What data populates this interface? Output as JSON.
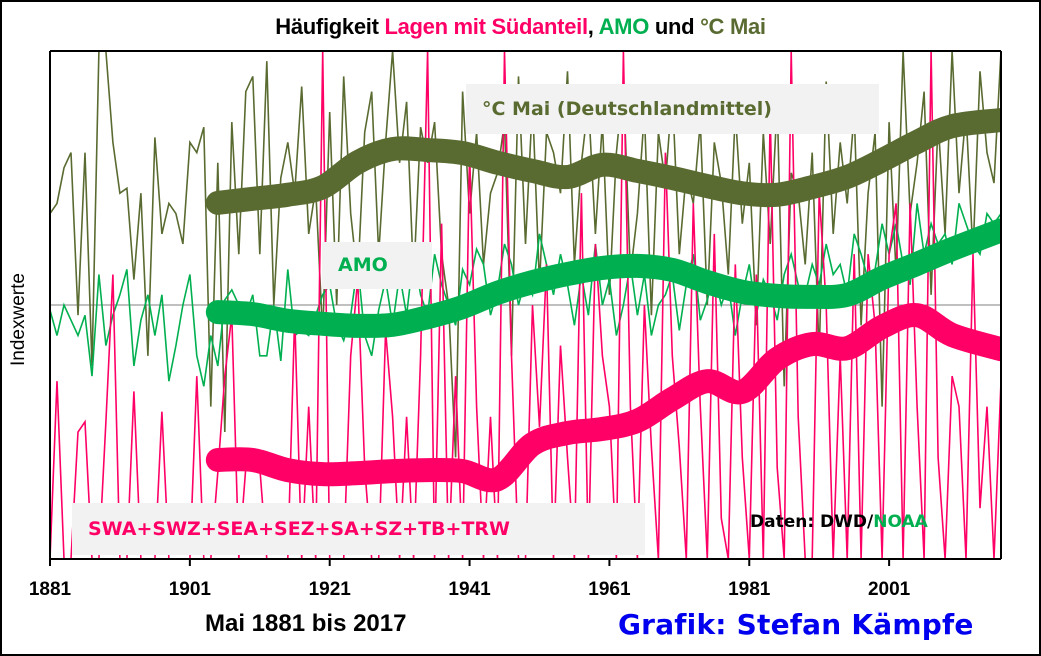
{
  "chart_data": {
    "type": "line",
    "title_parts": [
      {
        "text": "Häufigkeit ",
        "color": "#000000"
      },
      {
        "text": "Lagen mit Südanteil",
        "color": "#ff0066"
      },
      {
        "text": ", ",
        "color": "#000000"
      },
      {
        "text": "AMO",
        "color": "#00b050"
      },
      {
        "text": " und ",
        "color": "#000000"
      },
      {
        "text": "°C Mai",
        "color": "#5a6b31"
      }
    ],
    "xlabel": "Mai 1881 bis 2017",
    "ylabel": "Indexwerte",
    "xlim": [
      1881,
      2017
    ],
    "ylim": [
      0,
      100
    ],
    "reference_line": 50,
    "grid": false,
    "x_ticks": [
      1881,
      1901,
      1921,
      1941,
      1961,
      1981,
      2001
    ],
    "x_tick_labels": [
      "1881",
      "1901",
      "1921",
      "1941",
      "1961",
      "1981",
      "2001"
    ],
    "series_labels": {
      "temp": "°C Mai (Deutschlandmittel)",
      "amo": "AMO",
      "sud": "SWA+SWZ+SEA+SEZ+SA+SZ+TB+TRW"
    },
    "source_label": {
      "prefix": "Daten: DWD/",
      "suffix": "NOAA"
    },
    "credit": "Grafik: Stefan Kämpfe",
    "colors": {
      "temp": "#5a6b31",
      "amo": "#00b050",
      "sud": "#ff0066",
      "credit": "#0000ee",
      "reference": "#808080"
    },
    "smoothed": {
      "x": [
        1905,
        1910,
        1915,
        1920,
        1925,
        1930,
        1935,
        1940,
        1945,
        1950,
        1955,
        1960,
        1965,
        1970,
        1975,
        1980,
        1985,
        1990,
        1995,
        2000,
        2005,
        2010,
        2017
      ],
      "temp": [
        70.1,
        70.9,
        71.7,
        73.2,
        78.1,
        80.7,
        80.5,
        79.9,
        78.0,
        76.4,
        75.2,
        77.6,
        76.4,
        75.0,
        73.4,
        72.0,
        71.7,
        73.2,
        75.2,
        78.5,
        82.1,
        85.2,
        86.4
      ],
      "amo": [
        48.6,
        48.2,
        46.9,
        46.3,
        45.9,
        46.1,
        47.6,
        49.6,
        52.4,
        54.5,
        56.1,
        57.3,
        57.7,
        56.9,
        54.5,
        52.6,
        51.8,
        51.6,
        52.0,
        55.3,
        58.1,
        61.0,
        64.7
      ],
      "sud": [
        19.5,
        19.5,
        17.5,
        16.7,
        16.9,
        17.3,
        17.5,
        17.3,
        15.7,
        22.6,
        24.8,
        25.6,
        27.2,
        31.5,
        35.0,
        32.9,
        39.4,
        42.3,
        41.5,
        45.7,
        48.0,
        44.1,
        41.3
      ]
    },
    "annual": {
      "x_start": 1881,
      "x_end": 2017,
      "temp": [
        68,
        70,
        77,
        80,
        48,
        80,
        38,
        100,
        100,
        82,
        72,
        73,
        55,
        72,
        40,
        83,
        64,
        70,
        68,
        62,
        82,
        80,
        85,
        30,
        78,
        25,
        86,
        60,
        92,
        95,
        60,
        98,
        50,
        75,
        82,
        72,
        93,
        64,
        73,
        44,
        88,
        50,
        95,
        68,
        55,
        84,
        92,
        60,
        82,
        100,
        78,
        90,
        55,
        85,
        78,
        86,
        60,
        50,
        20,
        92,
        68,
        84,
        58,
        72,
        76,
        86,
        40,
        95,
        62,
        90,
        54,
        84,
        80,
        72,
        96,
        58,
        78,
        90,
        64,
        86,
        52,
        80,
        94,
        56,
        68,
        88,
        48,
        84,
        74,
        92,
        60,
        76,
        70,
        86,
        50,
        82,
        74,
        56,
        88,
        66,
        78,
        46,
        84,
        62,
        90,
        34,
        76,
        72,
        58,
        80,
        40,
        94,
        64,
        82,
        70,
        88,
        46,
        72,
        84,
        30,
        86,
        56,
        100,
        68,
        78,
        92,
        52,
        86,
        64,
        100,
        72,
        88,
        60,
        96,
        80,
        74,
        100
      ],
      "amo": [
        49,
        44,
        50,
        47,
        44,
        48,
        36,
        56,
        42,
        48,
        52,
        57,
        38,
        47,
        52,
        44,
        52,
        35,
        42,
        50,
        56,
        40,
        34,
        44,
        38,
        51,
        53,
        50,
        48,
        52,
        40,
        40,
        50,
        39,
        57,
        44,
        45,
        44,
        48,
        52,
        54,
        46,
        43,
        48,
        58,
        44,
        40,
        49,
        55,
        46,
        56,
        48,
        60,
        52,
        48,
        60,
        54,
        50,
        46,
        57,
        54,
        61,
        58,
        48,
        53,
        62,
        58,
        50,
        55,
        52,
        64,
        58,
        52,
        60,
        54,
        46,
        56,
        48,
        62,
        50,
        55,
        44,
        50,
        58,
        48,
        56,
        44,
        50,
        52,
        56,
        45,
        54,
        60,
        47,
        51,
        56,
        50,
        54,
        44,
        52,
        58,
        48,
        55,
        52,
        47,
        56,
        60,
        54,
        52,
        58,
        54,
        62,
        56,
        58,
        52,
        64,
        60,
        55,
        57,
        66,
        60,
        66,
        58,
        54,
        70,
        60,
        66,
        62,
        64,
        58,
        70,
        66,
        62,
        60,
        68,
        66,
        68
      ],
      "sud": [
        0,
        35,
        0,
        0,
        25,
        27,
        0,
        0,
        27,
        56,
        0,
        0,
        33,
        0,
        0,
        0,
        29,
        0,
        0,
        0,
        0,
        36,
        0,
        0,
        17,
        36,
        48,
        0,
        18,
        18,
        18,
        0,
        0,
        0,
        0,
        48,
        0,
        30,
        0,
        100,
        0,
        0,
        0,
        40,
        55,
        18,
        0,
        0,
        45,
        28,
        0,
        28,
        0,
        40,
        100,
        0,
        66,
        0,
        36,
        0,
        80,
        30,
        0,
        28,
        0,
        100,
        40,
        0,
        0,
        50,
        26,
        58,
        0,
        42,
        20,
        0,
        72,
        0,
        62,
        40,
        30,
        0,
        100,
        30,
        0,
        50,
        22,
        0,
        80,
        40,
        22,
        0,
        70,
        30,
        0,
        64,
        8,
        0,
        58,
        20,
        0,
        56,
        0,
        88,
        18,
        0,
        100,
        28,
        0,
        0,
        72,
        50,
        0,
        40,
        0,
        60,
        0,
        60,
        46,
        0,
        60,
        70,
        0,
        70,
        30,
        0,
        100,
        20,
        0,
        36,
        30,
        0,
        60,
        10,
        30,
        0,
        35
      ]
    }
  }
}
